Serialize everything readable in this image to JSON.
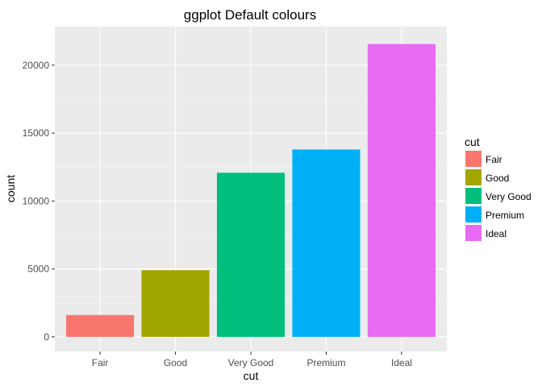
{
  "chart_data": {
    "type": "bar",
    "title": "ggplot Default colours",
    "xlabel": "cut",
    "ylabel": "count",
    "categories": [
      "Fair",
      "Good",
      "Very Good",
      "Premium",
      "Ideal"
    ],
    "values": [
      1610,
      4906,
      12082,
      13791,
      21551
    ],
    "colors": [
      "#F8766D",
      "#A3A500",
      "#00BF7D",
      "#00B0F6",
      "#E76BF3"
    ],
    "yticks": [
      0,
      5000,
      10000,
      15000,
      20000
    ],
    "ylim": [
      0,
      22600
    ],
    "grid": true,
    "panel_background": "#EBEBEB",
    "legend": {
      "title": "cut",
      "position": "right",
      "items": [
        "Fair",
        "Good",
        "Very Good",
        "Premium",
        "Ideal"
      ]
    }
  }
}
